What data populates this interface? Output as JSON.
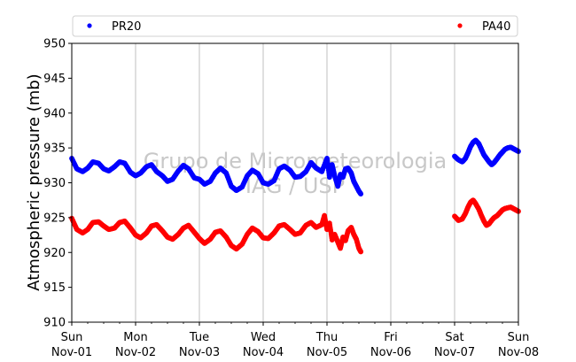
{
  "chart_data": {
    "type": "scatter",
    "ylabel": "Atmospheric pressure (mb)",
    "ylim": [
      910,
      950
    ],
    "yticks": [
      910,
      915,
      920,
      925,
      930,
      935,
      940,
      945,
      950
    ],
    "xlim": [
      0,
      7
    ],
    "xticks": [
      {
        "day": 0,
        "line1": "Sun",
        "line2": "Nov-01"
      },
      {
        "day": 1,
        "line1": "Mon",
        "line2": "Nov-02"
      },
      {
        "day": 2,
        "line1": "Tue",
        "line2": "Nov-03"
      },
      {
        "day": 3,
        "line1": "Wed",
        "line2": "Nov-04"
      },
      {
        "day": 4,
        "line1": "Thu",
        "line2": "Nov-05"
      },
      {
        "day": 5,
        "line1": "Fri",
        "line2": "Nov-06"
      },
      {
        "day": 6,
        "line1": "Sat",
        "line2": "Nov-07"
      },
      {
        "day": 7,
        "line1": "Sun",
        "line2": "Nov-08"
      }
    ],
    "grid": "vertical",
    "legend_placement": "top",
    "watermark": [
      "Grupo de Micrometeorologia",
      "IAG / USP"
    ],
    "series": [
      {
        "name": "PR20",
        "color": "#0000ff",
        "segments": [
          [
            [
              0.0,
              933.5
            ],
            [
              0.08,
              932.0
            ],
            [
              0.17,
              931.6
            ],
            [
              0.25,
              932.1
            ],
            [
              0.33,
              933.0
            ],
            [
              0.42,
              932.8
            ],
            [
              0.5,
              932.0
            ],
            [
              0.58,
              931.7
            ],
            [
              0.67,
              932.3
            ],
            [
              0.75,
              933.0
            ],
            [
              0.83,
              932.8
            ],
            [
              0.92,
              931.5
            ],
            [
              1.0,
              931.0
            ],
            [
              1.08,
              931.4
            ],
            [
              1.17,
              932.3
            ],
            [
              1.25,
              932.6
            ],
            [
              1.33,
              931.6
            ],
            [
              1.42,
              931.0
            ],
            [
              1.5,
              930.2
            ],
            [
              1.58,
              930.5
            ],
            [
              1.67,
              931.7
            ],
            [
              1.75,
              932.5
            ],
            [
              1.83,
              932.0
            ],
            [
              1.92,
              930.7
            ],
            [
              2.0,
              930.5
            ],
            [
              2.08,
              929.8
            ],
            [
              2.17,
              930.2
            ],
            [
              2.25,
              931.4
            ],
            [
              2.33,
              932.1
            ],
            [
              2.42,
              931.4
            ],
            [
              2.5,
              929.5
            ],
            [
              2.58,
              928.9
            ],
            [
              2.67,
              929.4
            ],
            [
              2.75,
              931.0
            ],
            [
              2.83,
              931.8
            ],
            [
              2.92,
              931.3
            ],
            [
              3.0,
              930.0
            ],
            [
              3.08,
              929.8
            ],
            [
              3.17,
              930.3
            ],
            [
              3.25,
              932.0
            ],
            [
              3.33,
              932.4
            ],
            [
              3.42,
              931.8
            ],
            [
              3.5,
              930.8
            ],
            [
              3.58,
              930.9
            ],
            [
              3.67,
              931.6
            ],
            [
              3.75,
              932.9
            ],
            [
              3.83,
              932.1
            ],
            [
              3.92,
              931.6
            ],
            [
              4.0,
              933.5
            ],
            [
              4.04,
              930.8
            ],
            [
              4.08,
              932.6
            ],
            [
              4.12,
              931.0
            ],
            [
              4.17,
              929.5
            ],
            [
              4.21,
              931.2
            ],
            [
              4.25,
              930.8
            ],
            [
              4.29,
              932.0
            ],
            [
              4.33,
              932.1
            ],
            [
              4.38,
              931.4
            ],
            [
              4.42,
              930.2
            ],
            [
              4.46,
              929.5
            ],
            [
              4.5,
              928.8
            ],
            [
              4.53,
              928.4
            ]
          ],
          [
            [
              6.0,
              933.8
            ],
            [
              6.06,
              933.3
            ],
            [
              6.12,
              933.0
            ],
            [
              6.17,
              933.5
            ],
            [
              6.21,
              934.3
            ],
            [
              6.25,
              935.2
            ],
            [
              6.29,
              935.8
            ],
            [
              6.33,
              936.1
            ],
            [
              6.38,
              935.6
            ],
            [
              6.42,
              934.8
            ],
            [
              6.46,
              934.0
            ],
            [
              6.5,
              933.5
            ],
            [
              6.54,
              933.0
            ],
            [
              6.58,
              932.6
            ],
            [
              6.62,
              932.9
            ],
            [
              6.67,
              933.5
            ],
            [
              6.71,
              934.0
            ],
            [
              6.75,
              934.4
            ],
            [
              6.79,
              934.8
            ],
            [
              6.83,
              935.0
            ],
            [
              6.88,
              935.1
            ],
            [
              6.92,
              934.9
            ],
            [
              6.96,
              934.7
            ],
            [
              7.0,
              934.5
            ]
          ]
        ]
      },
      {
        "name": "PA40",
        "color": "#ff0000",
        "segments": [
          [
            [
              0.0,
              924.9
            ],
            [
              0.08,
              923.3
            ],
            [
              0.17,
              922.8
            ],
            [
              0.25,
              923.3
            ],
            [
              0.33,
              924.3
            ],
            [
              0.42,
              924.4
            ],
            [
              0.5,
              923.8
            ],
            [
              0.58,
              923.3
            ],
            [
              0.67,
              923.5
            ],
            [
              0.75,
              924.3
            ],
            [
              0.83,
              924.5
            ],
            [
              0.92,
              923.5
            ],
            [
              1.0,
              922.5
            ],
            [
              1.08,
              922.1
            ],
            [
              1.17,
              922.8
            ],
            [
              1.25,
              923.8
            ],
            [
              1.33,
              924.0
            ],
            [
              1.42,
              923.1
            ],
            [
              1.5,
              922.2
            ],
            [
              1.58,
              921.9
            ],
            [
              1.67,
              922.6
            ],
            [
              1.75,
              923.5
            ],
            [
              1.83,
              923.9
            ],
            [
              1.92,
              922.9
            ],
            [
              2.0,
              922.0
            ],
            [
              2.08,
              921.3
            ],
            [
              2.17,
              921.9
            ],
            [
              2.25,
              922.9
            ],
            [
              2.33,
              923.1
            ],
            [
              2.42,
              922.2
            ],
            [
              2.5,
              921.0
            ],
            [
              2.58,
              920.5
            ],
            [
              2.67,
              921.2
            ],
            [
              2.75,
              922.6
            ],
            [
              2.83,
              923.5
            ],
            [
              2.92,
              923.0
            ],
            [
              3.0,
              922.1
            ],
            [
              3.08,
              922.0
            ],
            [
              3.17,
              922.8
            ],
            [
              3.25,
              923.8
            ],
            [
              3.33,
              924.0
            ],
            [
              3.42,
              923.3
            ],
            [
              3.5,
              922.6
            ],
            [
              3.58,
              922.8
            ],
            [
              3.67,
              923.9
            ],
            [
              3.75,
              924.3
            ],
            [
              3.83,
              923.6
            ],
            [
              3.92,
              924.0
            ],
            [
              3.96,
              925.3
            ],
            [
              4.0,
              923.3
            ],
            [
              4.04,
              924.2
            ],
            [
              4.08,
              921.8
            ],
            [
              4.12,
              922.6
            ],
            [
              4.17,
              921.5
            ],
            [
              4.21,
              920.6
            ],
            [
              4.25,
              922.2
            ],
            [
              4.29,
              921.7
            ],
            [
              4.33,
              923.1
            ],
            [
              4.38,
              923.6
            ],
            [
              4.42,
              922.6
            ],
            [
              4.46,
              921.9
            ],
            [
              4.5,
              920.6
            ],
            [
              4.53,
              920.1
            ]
          ],
          [
            [
              6.0,
              925.2
            ],
            [
              6.06,
              924.6
            ],
            [
              6.12,
              924.8
            ],
            [
              6.17,
              925.6
            ],
            [
              6.21,
              926.5
            ],
            [
              6.25,
              927.2
            ],
            [
              6.29,
              927.5
            ],
            [
              6.33,
              927.0
            ],
            [
              6.38,
              926.2
            ],
            [
              6.42,
              925.3
            ],
            [
              6.46,
              924.5
            ],
            [
              6.5,
              923.9
            ],
            [
              6.54,
              924.1
            ],
            [
              6.58,
              924.6
            ],
            [
              6.62,
              925.0
            ],
            [
              6.67,
              925.3
            ],
            [
              6.71,
              925.7
            ],
            [
              6.75,
              926.1
            ],
            [
              6.79,
              926.3
            ],
            [
              6.83,
              926.4
            ],
            [
              6.88,
              926.5
            ],
            [
              6.92,
              926.3
            ],
            [
              6.96,
              926.1
            ],
            [
              7.0,
              925.9
            ]
          ]
        ]
      }
    ]
  }
}
